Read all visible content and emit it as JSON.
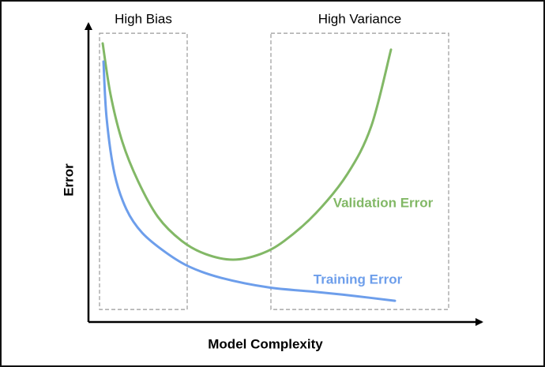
{
  "chart_data": {
    "type": "line",
    "xlabel": "Model Complexity",
    "ylabel": "Error",
    "xlim": [
      0,
      100
    ],
    "ylim": [
      0,
      100
    ],
    "regions": [
      {
        "label": "High Bias",
        "x": [
          2.8,
          25
        ],
        "y": [
          4.2,
          96.8
        ]
      },
      {
        "label": "High Variance",
        "x": [
          46.2,
          91.2
        ],
        "y": [
          4.2,
          96.8
        ]
      }
    ],
    "series": [
      {
        "name": "Validation Error",
        "color": "#82b866",
        "x": [
          3.6,
          5.6,
          8.6,
          12.6,
          17.6,
          23.6,
          29.6,
          36.6,
          43.6,
          49.6,
          57.6,
          65.6,
          71.6,
          76.6
        ],
        "values": [
          93.4,
          76.2,
          60.3,
          47.1,
          35.2,
          27.2,
          22.8,
          20.9,
          22.8,
          27.2,
          36.5,
          49.7,
          65.6,
          91.3
        ]
      },
      {
        "name": "Training Error",
        "color": "#6d9eeb",
        "x": [
          3.8,
          4.6,
          6.6,
          9.6,
          13.6,
          19.6,
          25.6,
          33.6,
          45.6,
          57.6,
          67.6,
          77.6
        ],
        "values": [
          87.3,
          68.3,
          49.7,
          37.8,
          29.9,
          23.3,
          18.5,
          14.8,
          11.6,
          10.1,
          8.7,
          7.1
        ]
      }
    ]
  }
}
